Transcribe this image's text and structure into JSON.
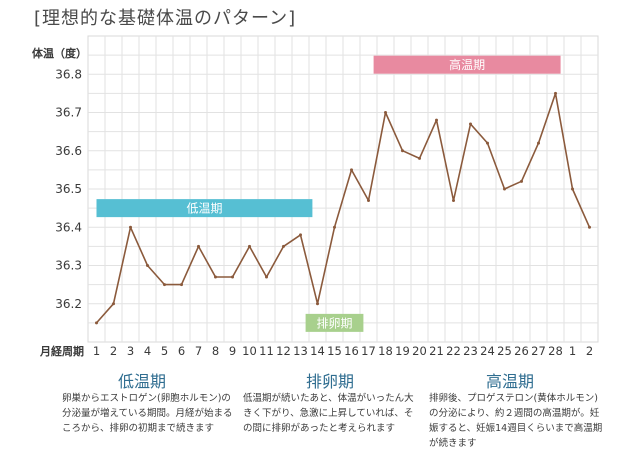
{
  "title": "[理想的な基礎体温のパターン]",
  "chart_data": {
    "type": "line",
    "ylabel": "体温（度）",
    "xlabel": "月経周期",
    "ylim": [
      36.1,
      36.9
    ],
    "yticks": [
      "36.2",
      "36.3",
      "36.4",
      "36.5",
      "36.6",
      "36.7",
      "36.8"
    ],
    "grid": true,
    "x": [
      "1",
      "2",
      "3",
      "4",
      "5",
      "6",
      "7",
      "8",
      "9",
      "10",
      "11",
      "12",
      "13",
      "14",
      "15",
      "16",
      "17",
      "18",
      "19",
      "20",
      "21",
      "22",
      "23",
      "24",
      "25",
      "26",
      "27",
      "28",
      "1",
      "2"
    ],
    "series": [
      {
        "values": [
          36.15,
          36.2,
          36.4,
          36.3,
          36.25,
          36.25,
          36.35,
          36.27,
          36.27,
          36.35,
          36.27,
          36.35,
          36.38,
          36.2,
          36.4,
          36.55,
          36.47,
          36.7,
          36.6,
          36.58,
          36.68,
          36.47,
          36.67,
          36.62,
          36.5,
          36.52,
          36.62,
          36.75,
          36.5,
          36.4
        ]
      }
    ],
    "bands": [
      {
        "label": "低温期",
        "start": 1,
        "end": 13.7,
        "y": 36.45,
        "color": "#56bfd3"
      },
      {
        "label": "排卵期",
        "start": 13.3,
        "end": 16.7,
        "y": 36.15,
        "color": "#a8d08d"
      },
      {
        "label": "高温期",
        "start": 17.3,
        "end": 28.3,
        "y": 36.825,
        "color": "#e88aa0"
      }
    ],
    "line_color": "#8b5a3c"
  },
  "phases": [
    {
      "title": "低温期",
      "desc": "卵巣からエストロゲン(卵胞ホルモン)の分泌量が増えている期間。月経が始まるころから、排卵の初期まで続きます"
    },
    {
      "title": "排卵期",
      "desc": "低温期が続いたあと、体温がいったん大きく下がり、急激に上昇していれば、その間に排卵があったと考えられます"
    },
    {
      "title": "高温期",
      "desc": "排卵後、プロゲステロン(黄体ホルモン)の分泌により、約２週間の高温期が。妊娠すると、妊娠14週目くらいまで高温期が続きます"
    }
  ]
}
